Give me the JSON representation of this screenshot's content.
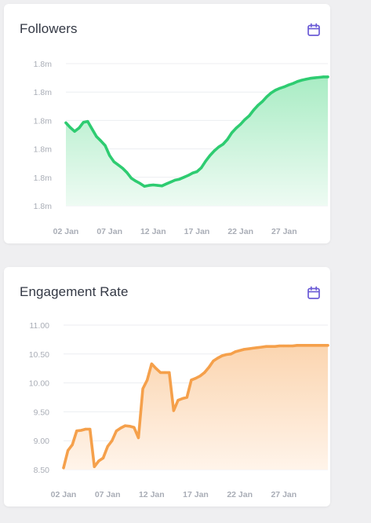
{
  "colors": {
    "background": "#efeff1",
    "accent_icon": "#6b5bd6"
  },
  "icons": {
    "calendar": "calendar-icon"
  },
  "chart_data": [
    {
      "type": "area",
      "title": "Followers",
      "color": "#2ecc71",
      "fill_top": "#a9ecc4",
      "fill_bottom": "#eefbf3",
      "xlabel": "",
      "ylabel": "",
      "x_tick_labels": [
        "02 Jan",
        "07 Jan",
        "12 Jan",
        "17 Jan",
        "22 Jan",
        "27 Jan"
      ],
      "y_tick_labels": [
        "1.8m",
        "1.8m",
        "1.8m",
        "1.8m",
        "1.8m",
        "1.8m"
      ],
      "grid": true,
      "legend": "none",
      "x": [
        2,
        2.5,
        3,
        3.5,
        4,
        4.5,
        5,
        5.5,
        6,
        6.5,
        7,
        7.5,
        8,
        8.5,
        9,
        9.5,
        10,
        10.5,
        11,
        11.5,
        12,
        12.5,
        13,
        13.5,
        14,
        14.5,
        15,
        15.5,
        16,
        16.5,
        17,
        17.5,
        18,
        18.5,
        19,
        19.5,
        20,
        20.5,
        21,
        21.5,
        22,
        22.5,
        23,
        23.5,
        24,
        24.5,
        25,
        25.5,
        26,
        26.5,
        27,
        27.5,
        28,
        28.5,
        29,
        29.5,
        30,
        30.5,
        31,
        31.5,
        32
      ],
      "values": [
        32.5,
        31.5,
        30.7,
        31.4,
        32.6,
        32.8,
        31.2,
        29.6,
        28.7,
        27.7,
        25.6,
        24.3,
        23.6,
        22.9,
        22.0,
        20.8,
        20.2,
        19.7,
        19.1,
        19.3,
        19.4,
        19.3,
        19.2,
        19.6,
        20.0,
        20.4,
        20.6,
        21.0,
        21.4,
        21.9,
        22.2,
        23.0,
        24.4,
        25.6,
        26.6,
        27.4,
        28.0,
        29.0,
        30.4,
        31.4,
        32.2,
        33.2,
        34.0,
        35.2,
        36.2,
        37.0,
        38.0,
        38.8,
        39.4,
        39.8,
        40.1,
        40.5,
        40.8,
        41.2,
        41.5,
        41.7,
        41.9,
        42.0,
        42.1,
        42.2,
        42.2
      ],
      "ylim": [
        15,
        45
      ]
    },
    {
      "type": "area",
      "title": "Engagement Rate",
      "color": "#f5a04b",
      "fill_top": "#fbd5b0",
      "fill_bottom": "#fff4ea",
      "xlabel": "",
      "ylabel": "",
      "x_tick_labels": [
        "02 Jan",
        "07 Jan",
        "12 Jan",
        "17 Jan",
        "22 Jan",
        "27 Jan"
      ],
      "y_tick_labels": [
        "8.50",
        "9.00",
        "9.50",
        "10.00",
        "10.50",
        "11.00"
      ],
      "grid": true,
      "legend": "none",
      "x": [
        2,
        2.5,
        3,
        3.5,
        4,
        4.5,
        5,
        5.5,
        6,
        6.5,
        7,
        7.5,
        8,
        8.5,
        9,
        9.5,
        10,
        10.5,
        11,
        11.5,
        12,
        12.5,
        13,
        13.5,
        14,
        14.5,
        15,
        15.5,
        16,
        16.5,
        17,
        17.5,
        18,
        18.5,
        19,
        19.5,
        20,
        20.5,
        21,
        21.5,
        22,
        22.5,
        23,
        23.5,
        24,
        24.5,
        25,
        25.5,
        26,
        26.5,
        27,
        27.5,
        28,
        28.5,
        29,
        29.5,
        30,
        30.5,
        31,
        31.5,
        32
      ],
      "values": [
        8.53,
        8.83,
        8.93,
        9.17,
        9.18,
        9.2,
        9.2,
        8.55,
        8.65,
        8.7,
        8.9,
        9.0,
        9.17,
        9.22,
        9.26,
        9.25,
        9.23,
        9.05,
        9.9,
        10.05,
        10.33,
        10.25,
        10.18,
        10.18,
        10.18,
        9.52,
        9.7,
        9.73,
        9.75,
        10.05,
        10.08,
        10.12,
        10.18,
        10.27,
        10.38,
        10.43,
        10.47,
        10.49,
        10.5,
        10.54,
        10.56,
        10.58,
        10.59,
        10.6,
        10.61,
        10.62,
        10.63,
        10.63,
        10.63,
        10.64,
        10.64,
        10.64,
        10.64,
        10.65,
        10.65,
        10.65,
        10.65,
        10.65,
        10.65,
        10.65,
        10.65
      ],
      "ylim": [
        8.5,
        11.0
      ]
    }
  ]
}
